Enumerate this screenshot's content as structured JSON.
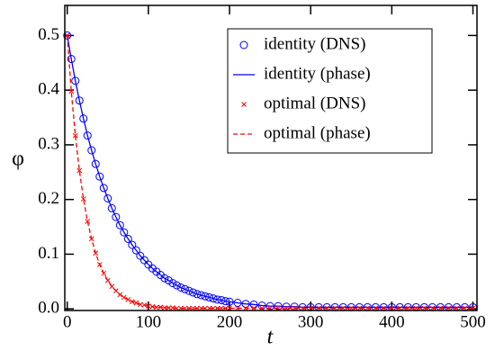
{
  "chart_data": {
    "type": "line",
    "xlabel": "t",
    "ylabel": "φ",
    "x": [
      0,
      5,
      10,
      15,
      20,
      25,
      30,
      35,
      40,
      45,
      50,
      55,
      60,
      65,
      70,
      75,
      80,
      85,
      90,
      95,
      100,
      105,
      110,
      115,
      120,
      125,
      130,
      135,
      140,
      145,
      150,
      155,
      160,
      165,
      170,
      175,
      180,
      185,
      190,
      195,
      200,
      210,
      220,
      230,
      240,
      250,
      260,
      270,
      280,
      290,
      300,
      310,
      320,
      330,
      340,
      350,
      360,
      370,
      380,
      390,
      400,
      410,
      420,
      430,
      440,
      450,
      460,
      470,
      480,
      490,
      500
    ],
    "series": [
      {
        "name": "identity (DNS)",
        "color": "#0000ff",
        "marker": "circle",
        "linestyle": "none",
        "values": [
          0.5,
          0.457,
          0.417,
          0.381,
          0.348,
          0.317,
          0.29,
          0.265,
          0.242,
          0.221,
          0.202,
          0.184,
          0.168,
          0.153,
          0.14,
          0.128,
          0.117,
          0.107,
          0.097,
          0.089,
          0.081,
          0.074,
          0.068,
          0.062,
          0.056,
          0.052,
          0.047,
          0.043,
          0.039,
          0.036,
          0.033,
          0.03,
          0.027,
          0.025,
          0.023,
          0.021,
          0.019,
          0.017,
          0.016,
          0.014,
          0.013,
          0.011,
          0.009,
          0.008,
          0.006,
          0.005,
          0.005,
          0.004,
          0.004,
          0.003,
          0.003,
          0.003,
          0.003,
          0.003,
          0.003,
          0.003,
          0.003,
          0.003,
          0.003,
          0.003,
          0.003,
          0.003,
          0.003,
          0.003,
          0.003,
          0.003,
          0.003,
          0.003,
          0.003,
          0.003,
          0.003
        ]
      },
      {
        "name": "identity (phase)",
        "color": "#0000ff",
        "marker": "none",
        "linestyle": "solid",
        "values": [
          0.5,
          0.457,
          0.417,
          0.381,
          0.348,
          0.317,
          0.29,
          0.265,
          0.242,
          0.221,
          0.202,
          0.184,
          0.168,
          0.153,
          0.14,
          0.128,
          0.117,
          0.107,
          0.097,
          0.089,
          0.081,
          0.074,
          0.068,
          0.062,
          0.056,
          0.052,
          0.047,
          0.043,
          0.039,
          0.036,
          0.033,
          0.03,
          0.027,
          0.025,
          0.023,
          0.021,
          0.019,
          0.017,
          0.016,
          0.014,
          0.013,
          0.011,
          0.009,
          0.008,
          0.006,
          0.005,
          0.005,
          0.004,
          0.004,
          0.003,
          0.003,
          0.003,
          0.003,
          0.003,
          0.003,
          0.003,
          0.003,
          0.003,
          0.003,
          0.003,
          0.003,
          0.003,
          0.003,
          0.003,
          0.003,
          0.003,
          0.003,
          0.003,
          0.003,
          0.003,
          0.003
        ]
      },
      {
        "name": "optimal (DNS)",
        "color": "#ff0000",
        "marker": "x",
        "linestyle": "none",
        "values": [
          0.5,
          0.398,
          0.317,
          0.253,
          0.201,
          0.16,
          0.128,
          0.102,
          0.081,
          0.065,
          0.052,
          0.041,
          0.033,
          0.026,
          0.021,
          0.017,
          0.013,
          0.011,
          0.008,
          0.007,
          0.005,
          0.004,
          0.003,
          0.003,
          0.002,
          0.002,
          0.002,
          0.001,
          0.001,
          0.001,
          0.001,
          0.001,
          0.001,
          0.001,
          0.001,
          0.001,
          0.001,
          0.001,
          0.001,
          0.001,
          0.001,
          0.001,
          0.001,
          0.001,
          0.001,
          0.001,
          0.001,
          0.001,
          0.001,
          0.001,
          0.001,
          0.001,
          0.001,
          0.001,
          0.001,
          0.001,
          0.001,
          0.001,
          0.001,
          0.001,
          0.001,
          0.001,
          0.001,
          0.001,
          0.001,
          0.001,
          0.001,
          0.001,
          0.001,
          0.001,
          0.001
        ]
      },
      {
        "name": "optimal (phase)",
        "color": "#ff0000",
        "marker": "none",
        "linestyle": "dashed",
        "values": [
          0.5,
          0.398,
          0.317,
          0.253,
          0.201,
          0.16,
          0.128,
          0.102,
          0.081,
          0.065,
          0.052,
          0.041,
          0.033,
          0.026,
          0.021,
          0.017,
          0.013,
          0.011,
          0.008,
          0.007,
          0.005,
          0.004,
          0.003,
          0.003,
          0.002,
          0.002,
          0.002,
          0.001,
          0.001,
          0.001,
          0.001,
          0.001,
          0.001,
          0.001,
          0.001,
          0.001,
          0.001,
          0.001,
          0.001,
          0.001,
          0.001,
          0.001,
          0.001,
          0.001,
          0.001,
          0.001,
          0.001,
          0.001,
          0.001,
          0.001,
          0.001,
          0.001,
          0.001,
          0.001,
          0.001,
          0.001,
          0.001,
          0.001,
          0.001,
          0.001,
          0.001,
          0.001,
          0.001,
          0.001,
          0.001,
          0.001,
          0.001,
          0.001,
          0.001,
          0.001,
          0.001
        ]
      }
    ],
    "xlim": [
      -3,
      505
    ],
    "xticks": [
      0,
      100,
      200,
      300,
      400,
      500
    ],
    "ylim": [
      -0.003,
      0.555
    ],
    "yticks": [
      {
        "value": 0,
        "label": "0.0"
      },
      0.1,
      0.2,
      0.3,
      0.4,
      0.5
    ],
    "legend_loc": "upper right",
    "grid": false
  }
}
